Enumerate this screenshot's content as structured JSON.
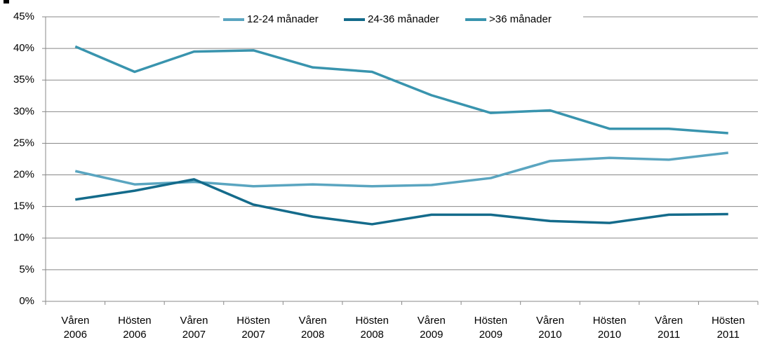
{
  "chart_data": {
    "type": "line",
    "categories": [
      "Våren 2006",
      "Hösten 2006",
      "Våren 2007",
      "Hösten 2007",
      "Våren 2008",
      "Hösten 2008",
      "Våren 2009",
      "Hösten 2009",
      "Våren 2010",
      "Hösten 2010",
      "Våren 2011",
      "Hösten 2011"
    ],
    "series": [
      {
        "name": "12-24 månader",
        "color": "#5aa5c0",
        "values": [
          20.6,
          18.5,
          18.9,
          18.2,
          18.5,
          18.2,
          18.4,
          19.5,
          22.2,
          22.7,
          22.4,
          23.5
        ]
      },
      {
        "name": "24-36 månader",
        "color": "#146b8b",
        "values": [
          16.1,
          17.5,
          19.3,
          15.3,
          13.4,
          12.2,
          13.7,
          13.7,
          12.7,
          12.4,
          13.7,
          13.8
        ]
      },
      {
        "name": ">36 månader",
        "color": "#3994ae",
        "values": [
          40.3,
          36.3,
          39.5,
          39.7,
          37.0,
          36.3,
          32.6,
          29.8,
          30.2,
          27.3,
          27.3,
          26.6
        ]
      }
    ],
    "ylim": [
      0,
      45
    ],
    "yticks": [
      {
        "value": 0,
        "label": "0%"
      },
      {
        "value": 5,
        "label": "5%"
      },
      {
        "value": 10,
        "label": "10%"
      },
      {
        "value": 15,
        "label": "15%"
      },
      {
        "value": 20,
        "label": "20%"
      },
      {
        "value": 25,
        "label": "25%"
      },
      {
        "value": 30,
        "label": "30%"
      },
      {
        "value": 35,
        "label": "35%"
      },
      {
        "value": 40,
        "label": "40%"
      },
      {
        "value": 45,
        "label": "45%"
      }
    ],
    "grid": true,
    "legend": "top"
  }
}
